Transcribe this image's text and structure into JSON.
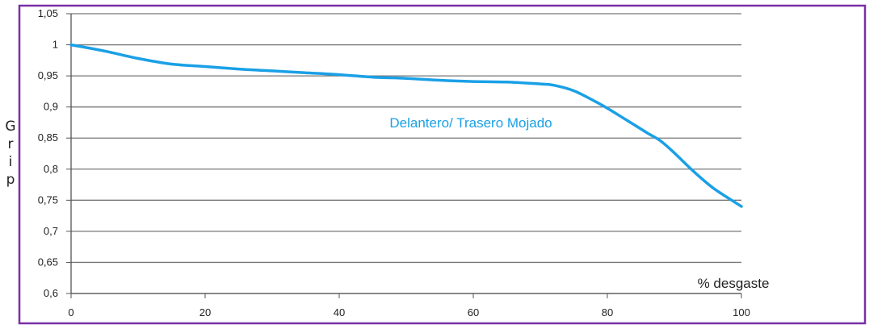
{
  "chart_data": {
    "type": "line",
    "title": "",
    "xlabel": "% desgaste",
    "ylabel": "Grip",
    "xlim": [
      0,
      100
    ],
    "ylim": [
      0.6,
      1.05
    ],
    "x_ticks": [
      "0",
      "20",
      "40",
      "60",
      "80",
      "100"
    ],
    "y_ticks": [
      "1,05",
      "1",
      "0,95",
      "0,9",
      "0,85",
      "0,8",
      "0,75",
      "0,7",
      "0,65",
      "0,6"
    ],
    "grid": true,
    "series": [
      {
        "name": "Delantero/ Trasero Mojado",
        "color": "#1aa0e6",
        "x": [
          0,
          5,
          10,
          15,
          20,
          25,
          30,
          35,
          40,
          45,
          50,
          55,
          60,
          65,
          70,
          72,
          75,
          78,
          80,
          83,
          86,
          88,
          90,
          93,
          96,
          100
        ],
        "y": [
          1.0,
          0.99,
          0.978,
          0.969,
          0.965,
          0.961,
          0.958,
          0.955,
          0.952,
          0.948,
          0.946,
          0.943,
          0.941,
          0.94,
          0.937,
          0.935,
          0.926,
          0.91,
          0.898,
          0.878,
          0.858,
          0.845,
          0.826,
          0.795,
          0.768,
          0.74
        ]
      }
    ]
  },
  "colors": {
    "border": "#7a2fa8",
    "series": "#1aa0e6",
    "grid": "#777777"
  }
}
